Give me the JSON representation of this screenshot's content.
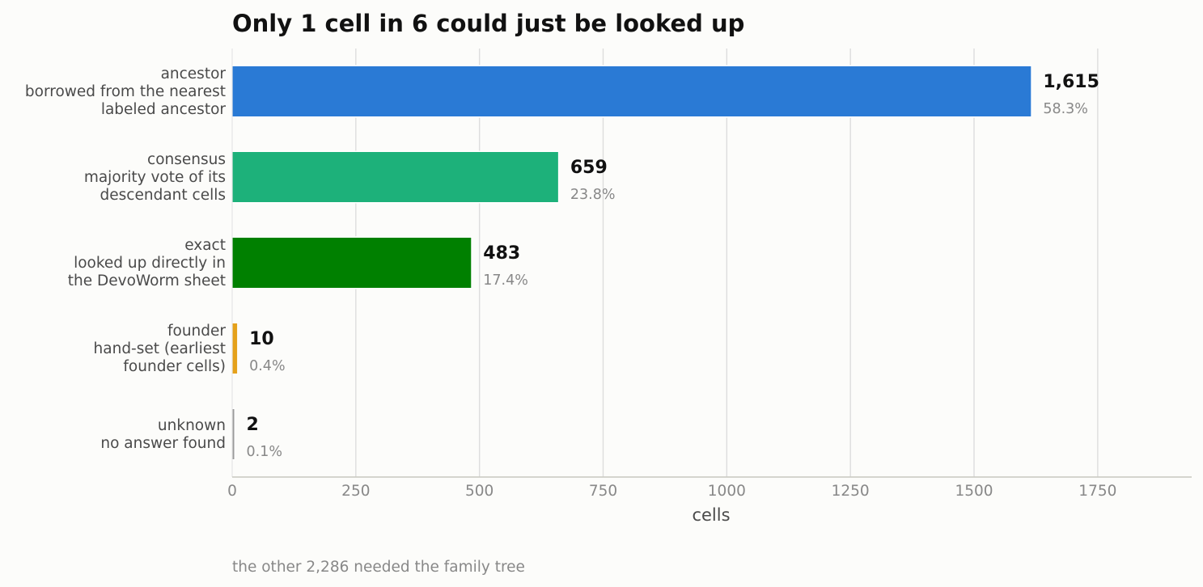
{
  "chart_data": {
    "type": "bar",
    "orientation": "horizontal",
    "title": "Only 1 cell in 6 could just be looked up",
    "xlabel": "cells",
    "ylabel": "",
    "xlim": [
      0,
      1940
    ],
    "xticks": [
      0,
      250,
      500,
      750,
      1000,
      1250,
      1500,
      1750
    ],
    "grid": "vertical",
    "legend": "none",
    "footnote": "the other 2,286 needed the family tree",
    "categories": [
      {
        "name": "ancestor",
        "description": [
          "borrowed from the nearest",
          "labeled ancestor"
        ],
        "value": 1615,
        "value_label": "1,615",
        "percent_label": "58.3%",
        "color": "#2a7ad5"
      },
      {
        "name": "consensus",
        "description": [
          "majority vote of its",
          "descendant cells"
        ],
        "value": 659,
        "value_label": "659",
        "percent_label": "23.8%",
        "color": "#1db17a"
      },
      {
        "name": "exact",
        "description": [
          "looked up directly in",
          "the DevoWorm sheet"
        ],
        "value": 483,
        "value_label": "483",
        "percent_label": "17.4%",
        "color": "#008000"
      },
      {
        "name": "founder",
        "description": [
          "hand-set (earliest",
          "founder cells)"
        ],
        "value": 10,
        "value_label": "10",
        "percent_label": "0.4%",
        "color": "#e5a11a"
      },
      {
        "name": "unknown",
        "description": [
          "no answer found"
        ],
        "value": 2,
        "value_label": "2",
        "percent_label": "0.1%",
        "color": "#9a9a9a"
      }
    ]
  }
}
